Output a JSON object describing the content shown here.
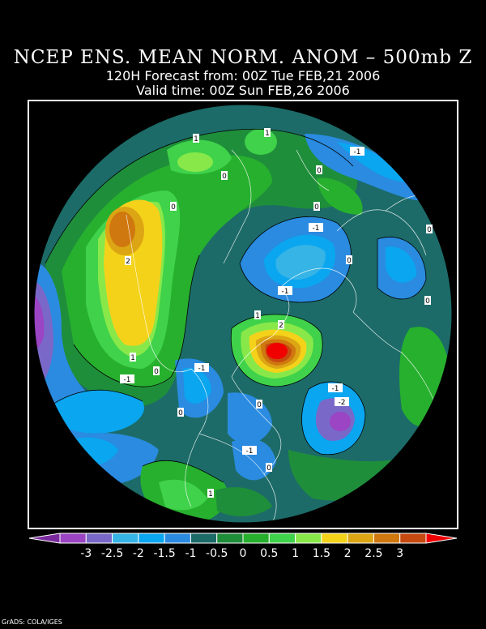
{
  "title": {
    "line1": "NCEP ENS. MEAN NORM. ANOM – 500mb Z",
    "line2": "120H Forecast from: 00Z Tue FEB,21 2006",
    "line3": "Valid time: 00Z Sun FEB,26 2006"
  },
  "contour_labels": [
    {
      "text": "1",
      "lon_hint": "arctic-top"
    },
    {
      "text": "1",
      "lon_hint": "arctic-left"
    },
    {
      "text": "-1",
      "lon_hint": "europe-top"
    },
    {
      "text": "0",
      "lon_hint": "north-atlantic"
    },
    {
      "text": "0",
      "lon_hint": "greenland"
    },
    {
      "text": "0",
      "lon_hint": "bering"
    },
    {
      "text": "0",
      "lon_hint": "scandinavia"
    },
    {
      "text": "0",
      "lon_hint": "right-edge"
    },
    {
      "text": "-1",
      "lon_hint": "barents"
    },
    {
      "text": "2",
      "lon_hint": "pacific-left"
    },
    {
      "text": "0",
      "lon_hint": "east-asia"
    },
    {
      "text": "-1",
      "lon_hint": "siberia"
    },
    {
      "text": "0",
      "lon_hint": "right-mid"
    },
    {
      "text": "1",
      "lon_hint": "canada"
    },
    {
      "text": "2",
      "lon_hint": "hudson"
    },
    {
      "text": "1",
      "lon_hint": "pacific-bottom"
    },
    {
      "text": "0",
      "lon_hint": "alaska-south"
    },
    {
      "text": "-1",
      "lon_hint": "north-pacific"
    },
    {
      "text": "-1",
      "lon_hint": "west-canada"
    },
    {
      "text": "-1",
      "lon_hint": "atlantic-east"
    },
    {
      "text": "-2",
      "lon_hint": "atlantic-low"
    },
    {
      "text": "0",
      "lon_hint": "great-lakes"
    },
    {
      "text": "0",
      "lon_hint": "west-us"
    },
    {
      "text": "-1",
      "lon_hint": "east-us"
    },
    {
      "text": "0",
      "lon_hint": "southeast-us"
    },
    {
      "text": "1",
      "lon_hint": "south-us"
    }
  ],
  "legend": {
    "colors": [
      "#7a2a9e",
      "#9b44c4",
      "#7a68c8",
      "#36b4e6",
      "#0aa6f0",
      "#2a8be0",
      "#1c6b68",
      "#1f8e3a",
      "#27b02e",
      "#3fd24a",
      "#88e84a",
      "#f4d21a",
      "#dca514",
      "#d07810",
      "#c64a10",
      "#f00000"
    ],
    "labels": [
      "-3",
      "-2.5",
      "-2",
      "-1.5",
      "-1",
      "-0.5",
      "0",
      "0.5",
      "1",
      "1.5",
      "2",
      "2.5",
      "3"
    ]
  },
  "credit": "GrADS: COLA/IGES"
}
